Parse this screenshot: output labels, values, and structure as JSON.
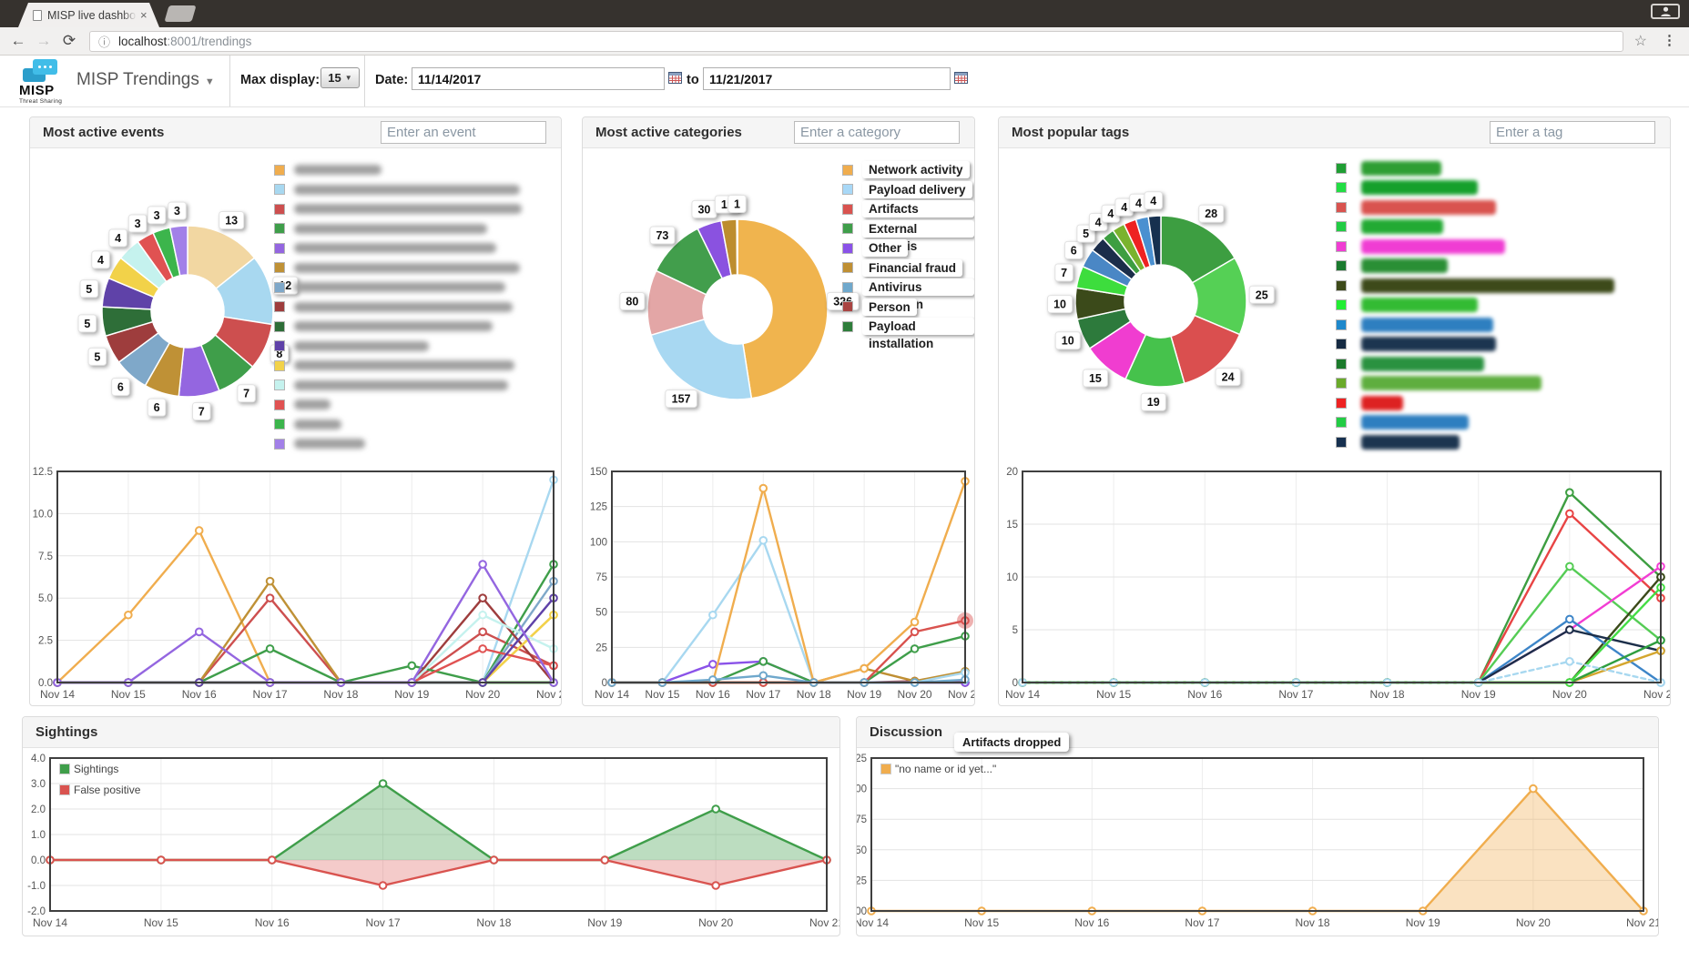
{
  "browser": {
    "tab_title": "MISP live dashboard",
    "url_host": "localhost",
    "url_path": ":8001/trendings",
    "back": "←",
    "forward": "→",
    "refresh": "⟳",
    "info": "ⓘ",
    "star": "☆",
    "menu": "⋮",
    "close": "×"
  },
  "header": {
    "brand": "MISP",
    "tagline": "Threat Sharing",
    "nav_title": "MISP Trendings",
    "max_display_label": "Max display:",
    "max_display_value": "15",
    "date_label": "Date:",
    "date_from": "11/14/2017",
    "to_label": "to",
    "date_to": "11/21/2017"
  },
  "tooltip_label": "Artifacts dropped",
  "dates": [
    "Nov 14",
    "Nov 15",
    "Nov 16",
    "Nov 17",
    "Nov 18",
    "Nov 19",
    "Nov 20",
    "Nov 21"
  ],
  "panels": {
    "events": {
      "title": "Most active events",
      "search_placeholder": "Enter an event",
      "donut": {
        "type": "pie",
        "values": [
          13,
          12,
          8,
          7,
          7,
          6,
          6,
          5,
          5,
          5,
          4,
          4,
          3,
          3,
          3
        ],
        "colors": [
          "#f2d7a2",
          "#a8d8f0",
          "#cd4f4f",
          "#3f9e4a",
          "#9466e0",
          "#bf9136",
          "#7fa8c9",
          "#9e3d3d",
          "#2e6e38",
          "#5f42a8",
          "#f2d249",
          "#c5f2ee",
          "#e05252",
          "#3cb54c",
          "#a280e8"
        ]
      },
      "legend_blurred": {
        "colors": [
          "#f0ad4e",
          "#a8d8f0",
          "#cd4f4f",
          "#3f9e4a",
          "#9466e0",
          "#bf9136",
          "#7fa8c9",
          "#9e3d3d",
          "#2e6e38",
          "#5f42a8",
          "#f2d249",
          "#c5f2ee",
          "#e05252",
          "#3cb54c",
          "#a280e8"
        ],
        "widths": [
          96,
          248,
          250,
          212,
          222,
          248,
          232,
          240,
          218,
          148,
          242,
          235,
          40,
          52,
          78
        ]
      },
      "line": {
        "type": "line",
        "ymin": 0,
        "ymax": 12.5,
        "step": 2.5,
        "decimals": 1,
        "series": [
          {
            "color": "#f0ad4e",
            "values": [
              0,
              4,
              9,
              0,
              0,
              0,
              0,
              4
            ]
          },
          {
            "color": "#a8d8f0",
            "values": [
              0,
              0,
              0,
              0,
              0,
              0,
              0,
              12
            ]
          },
          {
            "color": "#cd4f4f",
            "values": [
              0,
              0,
              0,
              5,
              0,
              0,
              3,
              1
            ]
          },
          {
            "color": "#3f9e4a",
            "values": [
              0,
              0,
              0,
              2,
              0,
              1,
              0,
              7
            ]
          },
          {
            "color": "#bf9136",
            "values": [
              0,
              0,
              0,
              6,
              0,
              0,
              0,
              0
            ]
          },
          {
            "color": "#7fa8c9",
            "values": [
              0,
              0,
              0,
              0,
              0,
              0,
              0,
              6
            ]
          },
          {
            "color": "#9e3d3d",
            "values": [
              0,
              0,
              0,
              0,
              0,
              0,
              5,
              0
            ]
          },
          {
            "color": "#2e6e38",
            "values": [
              0,
              0,
              0,
              0,
              0,
              0,
              0,
              0
            ]
          },
          {
            "color": "#f2d249",
            "values": [
              0,
              0,
              0,
              0,
              0,
              0,
              0,
              4
            ]
          },
          {
            "color": "#c5f2ee",
            "values": [
              0,
              0,
              0,
              0,
              0,
              0,
              4,
              2
            ]
          },
          {
            "color": "#e05252",
            "values": [
              0,
              0,
              0,
              0,
              0,
              0,
              2,
              1
            ]
          },
          {
            "color": "#3cb54c",
            "values": [
              0,
              0,
              0,
              0,
              0,
              0,
              0,
              0
            ]
          },
          {
            "color": "#5f42a8",
            "values": [
              0,
              0,
              0,
              0,
              0,
              0,
              0,
              5
            ]
          },
          {
            "color": "#9466e0",
            "values": [
              0,
              0,
              3,
              0,
              0,
              0,
              7,
              0
            ]
          }
        ]
      }
    },
    "categories": {
      "title": "Most active categories",
      "search_placeholder": "Enter a category",
      "donut": {
        "type": "pie",
        "values": [
          326,
          157,
          80,
          73,
          30,
          19,
          1
        ],
        "colors": [
          "#f0b44e",
          "#a8d8f2",
          "#e3a6a6",
          "#429e4c",
          "#8a52e0",
          "#bd8d2e",
          "#9fd0ea"
        ]
      },
      "legend": [
        {
          "label": "Network activity",
          "color": "#f0ad4e"
        },
        {
          "label": "Payload delivery",
          "color": "#a8d8f7"
        },
        {
          "label": "Artifacts dropped",
          "color": "#d9534f"
        },
        {
          "label": "External analysis",
          "color": "#3f9e4a"
        },
        {
          "label": "Other",
          "color": "#8a52e8"
        },
        {
          "label": "Financial fraud",
          "color": "#bf8f33"
        },
        {
          "label": "Antivirus detection",
          "color": "#6fa8cc"
        },
        {
          "label": "Person",
          "color": "#a94442"
        },
        {
          "label": "Payload installation",
          "color": "#2e7d3a"
        }
      ],
      "line": {
        "type": "line",
        "ymin": 0,
        "ymax": 150,
        "step": 25,
        "decimals": 0,
        "series": [
          {
            "name": "Payload installation",
            "color": "#2e7d3a",
            "values": [
              0,
              0,
              0,
              0,
              0,
              0,
              0,
              0
            ]
          },
          {
            "name": "Person",
            "color": "#a94442",
            "values": [
              0,
              0,
              0,
              0,
              0,
              0,
              1,
              0
            ]
          },
          {
            "name": "Other",
            "color": "#8a52e8",
            "values": [
              0,
              0,
              13,
              15,
              0,
              0,
              0,
              0
            ]
          },
          {
            "name": "Financial fraud",
            "color": "#bf8f33",
            "values": [
              0,
              0,
              0,
              0,
              0,
              10,
              1,
              8
            ]
          },
          {
            "name": "Payload delivery",
            "color": "#a8d8f0",
            "values": [
              0,
              0,
              48,
              101,
              0,
              0,
              0,
              7
            ]
          },
          {
            "name": "Network activity",
            "color": "#f0ad4e",
            "values": [
              0,
              0,
              0,
              138,
              0,
              10,
              43,
              143
            ]
          },
          {
            "name": "External analysis",
            "color": "#3f9e4a",
            "values": [
              0,
              0,
              0,
              15,
              0,
              0,
              24,
              33
            ]
          },
          {
            "name": "Artifacts dropped",
            "color": "#d9534f",
            "values": [
              0,
              0,
              0,
              0,
              0,
              0,
              36,
              44
            ],
            "highlight_last": true
          },
          {
            "name": "Antivirus detection",
            "color": "#6fa8cc",
            "values": [
              0,
              0,
              2,
              5,
              0,
              0,
              0,
              2
            ]
          }
        ]
      }
    },
    "tags": {
      "title": "Most popular tags",
      "search_placeholder": "Enter a tag",
      "donut": {
        "type": "pie",
        "values": [
          28,
          25,
          24,
          19,
          15,
          10,
          10,
          7,
          6,
          5,
          4,
          4,
          4,
          4,
          4
        ],
        "colors": [
          "#3d9e41",
          "#55d055",
          "#da4f4f",
          "#46c24c",
          "#f03dd0",
          "#2d7a3c",
          "#3b4a1a",
          "#3ddd3d",
          "#4a87c5",
          "#1b2d4a",
          "#3d9e41",
          "#7ab32e",
          "#ee2222",
          "#4a90d0",
          "#16304f"
        ]
      },
      "legend_pills": {
        "swatches": [
          "#1f9e33",
          "#22dd44",
          "#d9534f",
          "#22cc44",
          "#f03dd3",
          "#1a7a2e",
          "#3d4a1a",
          "#22ee33",
          "#1e88cc",
          "#152a42",
          "#1b7a2b",
          "#6aaa2a",
          "#ee2222",
          "#22cc44",
          "#16304f"
        ],
        "pill_colors": [
          "#2e9e33",
          "#16a02c",
          "#d9534f",
          "#22aa33",
          "#f03dd3",
          "#2a8f35",
          "#3d4a1a",
          "#33bb33",
          "#2e7fc0",
          "#1c3550",
          "#2a9240",
          "#5fae3f",
          "#dd2222",
          "#2e7fc0",
          "#1c3550"
        ],
        "pill_widths": [
          88,
          128,
          148,
          90,
          158,
          95,
          278,
          128,
          145,
          148,
          135,
          198,
          46,
          118,
          108
        ]
      },
      "line": {
        "type": "line",
        "ymin": 0,
        "ymax": 20,
        "step": 5,
        "decimals": 0,
        "series": [
          {
            "color": "#3d9e41",
            "values": [
              0,
              0,
              0,
              0,
              0,
              0,
              18,
              10
            ]
          },
          {
            "color": "#e84444",
            "values": [
              0,
              0,
              0,
              0,
              0,
              0,
              16,
              8
            ]
          },
          {
            "color": "#55cc55",
            "values": [
              0,
              0,
              0,
              0,
              0,
              0,
              11,
              4
            ]
          },
          {
            "color": "#f23dd3",
            "values": [
              0,
              0,
              0,
              0,
              0,
              0,
              5,
              11
            ]
          },
          {
            "color": "#3b4a1a",
            "values": [
              0,
              0,
              0,
              0,
              0,
              0,
              0,
              10
            ]
          },
          {
            "color": "#3d85c8",
            "values": [
              0,
              0,
              0,
              0,
              0,
              0,
              6,
              0
            ]
          },
          {
            "color": "#1c2f4a",
            "values": [
              0,
              0,
              0,
              0,
              0,
              0,
              5,
              3
            ]
          },
          {
            "color": "#d4a62e",
            "values": [
              0,
              0,
              0,
              0,
              0,
              0,
              0,
              3
            ]
          },
          {
            "color": "#2f9e3f",
            "values": [
              0,
              0,
              0,
              0,
              0,
              0,
              0,
              4
            ]
          },
          {
            "color": "#44dd44",
            "values": [
              0,
              0,
              0,
              0,
              0,
              0,
              0,
              9
            ]
          },
          {
            "color": "#a8d8f0",
            "values": [
              0,
              0,
              0,
              0,
              0,
              0,
              2,
              0
            ],
            "dashed": true
          }
        ]
      }
    },
    "sightings": {
      "title": "Sightings",
      "line": {
        "type": "area",
        "ymin": -2,
        "ymax": 4,
        "step": 1,
        "decimals": 1,
        "legend": [
          {
            "label": "Sightings",
            "color": "#3f9e4a"
          },
          {
            "label": "False positive",
            "color": "#d9534f"
          }
        ],
        "series": [
          {
            "name": "Sightings",
            "color": "#3f9e4a",
            "fill": "rgba(63,158,74,0.35)",
            "values": [
              0,
              0,
              0,
              3,
              0,
              0,
              2,
              0
            ]
          },
          {
            "name": "False positive",
            "color": "#d9534f",
            "fill": "rgba(217,83,79,0.30)",
            "values": [
              0,
              0,
              0,
              -1,
              0,
              0,
              -1,
              0
            ]
          }
        ]
      }
    },
    "discussion": {
      "title": "Discussion",
      "line": {
        "type": "area",
        "ymin": 0,
        "ymax": 1.25,
        "step": 0.25,
        "decimals": 2,
        "legend": [
          {
            "label": "\"no name or id yet...\"",
            "color": "#f0ad4e"
          }
        ],
        "series": [
          {
            "name": "no name or id yet...",
            "color": "#f0ad4e",
            "fill": "rgba(240,173,78,0.35)",
            "values": [
              0,
              0,
              0,
              0,
              0,
              0,
              1,
              0
            ]
          }
        ]
      }
    }
  }
}
